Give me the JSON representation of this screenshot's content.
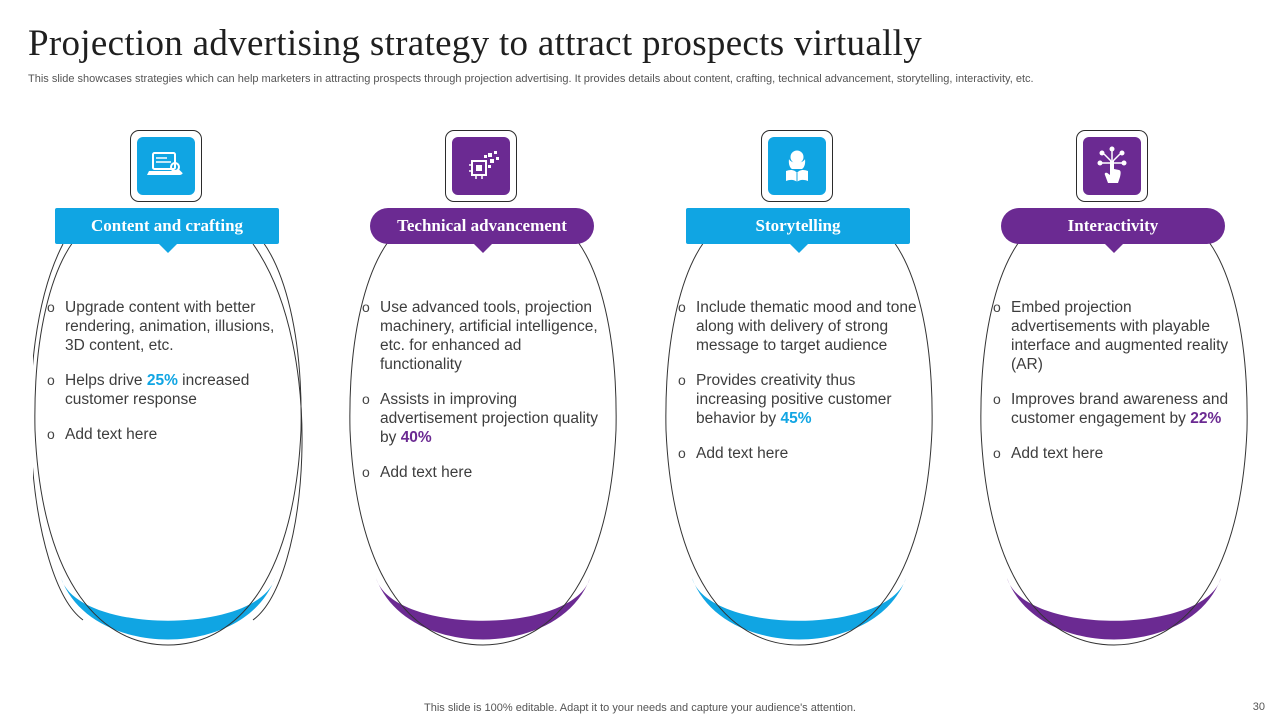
{
  "title": "Projection advertising strategy to attract prospects virtually",
  "subtitle": "This slide showcases strategies which can help marketers in attracting prospects through projection advertising. It provides details about content, crafting, technical advancement, storytelling, interactivity, etc.",
  "colors": {
    "blue": "#10a5e3",
    "purple": "#6b2a92",
    "outline": "#333333"
  },
  "cards": [
    {
      "heading": "Content and crafting",
      "icon": "laptop-search-icon",
      "items": [
        {
          "pre": "Upgrade content with better rendering, animation, illusions, 3D content, etc.",
          "hl": "",
          "post": ""
        },
        {
          "pre": "Helps drive ",
          "hl": "25%",
          "post": " increased customer response"
        },
        {
          "pre": "Add text here",
          "hl": "",
          "post": ""
        }
      ]
    },
    {
      "heading": "Technical advancement",
      "icon": "chip-pixels-icon",
      "items": [
        {
          "pre": "Use advanced tools, projection machinery, artificial intelligence, etc. for enhanced ad functionality",
          "hl": "",
          "post": ""
        },
        {
          "pre": "Assists in improving advertisement projection quality by ",
          "hl": "40%",
          "post": ""
        },
        {
          "pre": "Add text here",
          "hl": "",
          "post": ""
        }
      ]
    },
    {
      "heading": "Storytelling",
      "icon": "reader-woman-icon",
      "items": [
        {
          "pre": "Include thematic mood and tone along with delivery of strong message to target audience",
          "hl": "",
          "post": ""
        },
        {
          "pre": "Provides creativity thus increasing positive customer behavior by ",
          "hl": "45%",
          "post": ""
        },
        {
          "pre": "Add text here",
          "hl": "",
          "post": ""
        }
      ]
    },
    {
      "heading": "Interactivity",
      "icon": "touch-network-icon",
      "items": [
        {
          "pre": "Embed projection advertisements with playable interface and augmented reality (AR)",
          "hl": "",
          "post": ""
        },
        {
          "pre": "Improves brand awareness and customer engagement by ",
          "hl": "22%",
          "post": ""
        },
        {
          "pre": "Add text here",
          "hl": "",
          "post": ""
        }
      ]
    }
  ],
  "footer": "This slide is 100% editable. Adapt it to your needs and capture your audience's attention.",
  "page_number": "30"
}
